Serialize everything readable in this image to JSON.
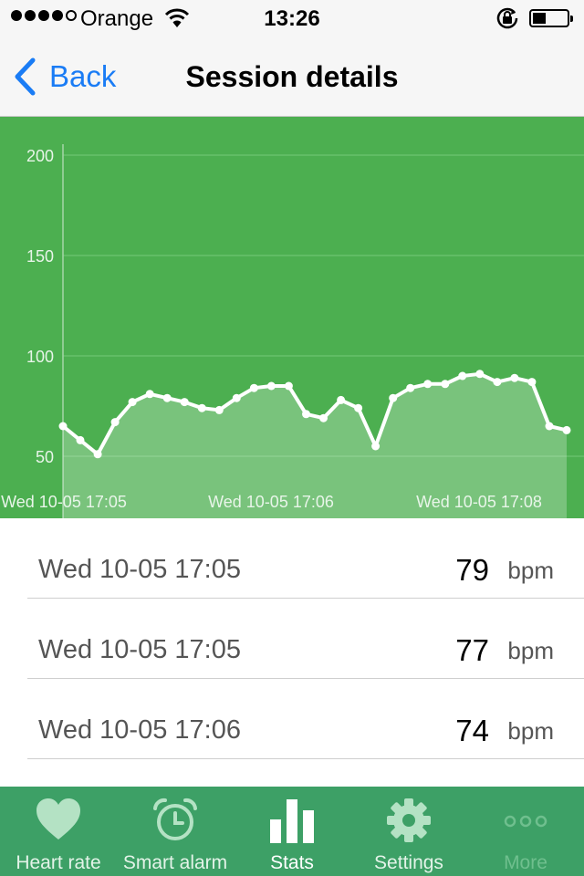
{
  "status_bar": {
    "carrier": "Orange",
    "time": "13:26"
  },
  "nav": {
    "back_label": "Back",
    "title": "Session details"
  },
  "colors": {
    "chart_background": "#4caf50",
    "tab_bar_background": "#3da066",
    "link_blue": "#1a7cf5"
  },
  "chart_data": {
    "type": "area",
    "title": "",
    "xlabel": "",
    "ylabel": "",
    "ylim": [
      40,
      220
    ],
    "y_ticks": [
      50,
      100,
      150,
      200
    ],
    "x_tick_labels": [
      "Wed 10-05 17:05",
      "Wed 10-05 17:06",
      "Wed 10-05 17:08"
    ],
    "grid": true,
    "series": [
      {
        "values": [
          65,
          58,
          51,
          67,
          77,
          81,
          79,
          77,
          74,
          73,
          79,
          84,
          85,
          85,
          71,
          69,
          78,
          74,
          55,
          79,
          84,
          86,
          86,
          90,
          91,
          87,
          89,
          87,
          65,
          63
        ]
      }
    ]
  },
  "readings": [
    {
      "time": "Wed 10-05 17:05",
      "value": "79",
      "unit": "bpm"
    },
    {
      "time": "Wed 10-05 17:05",
      "value": "77",
      "unit": "bpm"
    },
    {
      "time": "Wed 10-05 17:06",
      "value": "74",
      "unit": "bpm"
    }
  ],
  "tabs": [
    {
      "label": "Heart rate",
      "icon": "heart-icon"
    },
    {
      "label": "Smart alarm",
      "icon": "alarm-clock-icon"
    },
    {
      "label": "Stats",
      "icon": "bar-chart-icon",
      "active": true
    },
    {
      "label": "Settings",
      "icon": "gear-icon"
    },
    {
      "label": "More",
      "icon": "more-dots-icon",
      "disabled": true
    }
  ]
}
